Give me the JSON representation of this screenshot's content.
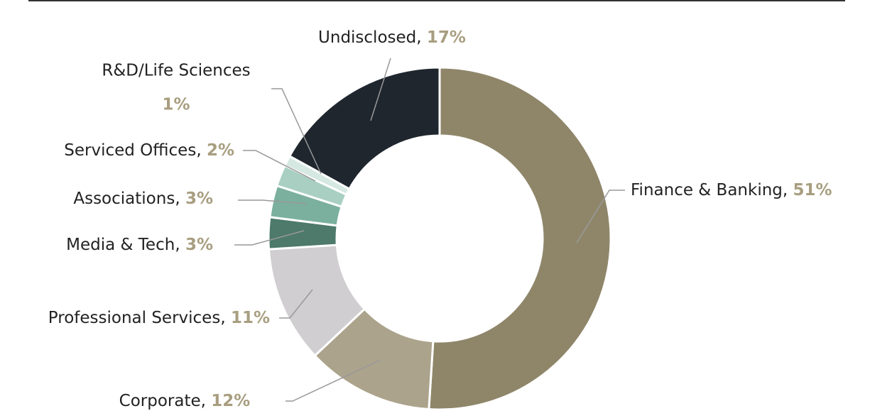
{
  "chart_data": {
    "type": "donut",
    "categories": [
      "Finance & Banking",
      "Corporate",
      "Professional Services",
      "Media & Tech",
      "Associations",
      "Serviced Offices",
      "R&D/Life Sciences",
      "Undisclosed"
    ],
    "values": [
      51,
      12,
      11,
      3,
      3,
      2,
      1,
      17
    ],
    "value_labels": [
      "51%",
      "12%",
      "11%",
      "3%",
      "3%",
      "2%",
      "1%",
      "17%"
    ],
    "separator": ", ",
    "colors": [
      "#8f866a",
      "#aca38c",
      "#d0ced0",
      "#4d7a6a",
      "#7bb09e",
      "#a8cfc2",
      "#d6e8e2",
      "#1f262e"
    ]
  }
}
